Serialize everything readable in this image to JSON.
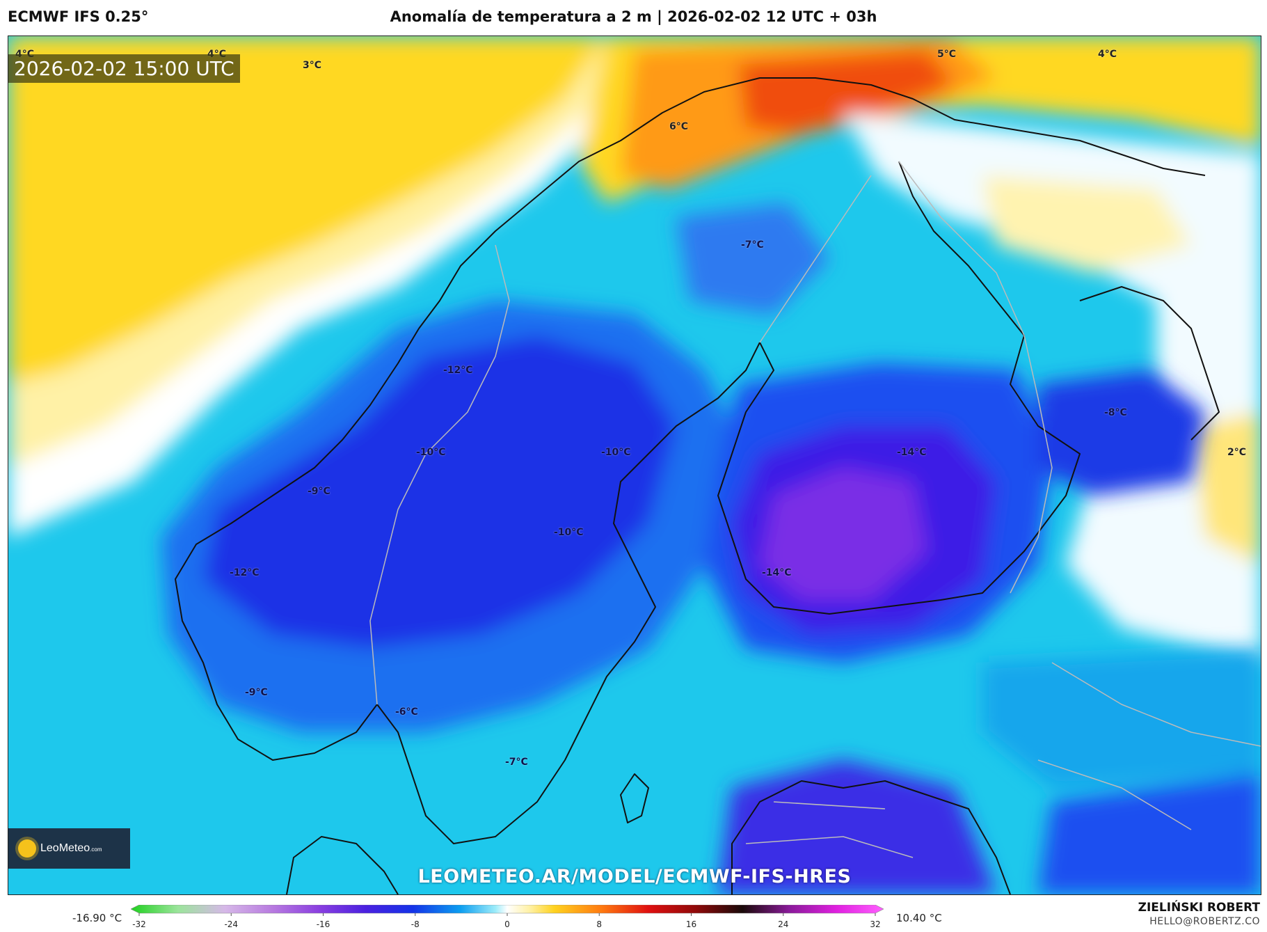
{
  "header": {
    "model_title": "ECMWF IFS 0.25°",
    "map_title": "Anomalía de temperatura a 2 m | 2026-02-02 12 UTC + 03h"
  },
  "map": {
    "valid_time": "2026-02-02 15:00 UTC",
    "url": "LEOMETEO.AR/MODEL/ECMWF-IFS-HRES",
    "logo": {
      "name": "LeoMeteo",
      "suffix": ".com"
    },
    "labels": [
      {
        "id": "l1",
        "text": "4°C"
      },
      {
        "id": "l2",
        "text": "4°C"
      },
      {
        "id": "l3",
        "text": "3°C"
      },
      {
        "id": "l4",
        "text": "5°C"
      },
      {
        "id": "l5",
        "text": "4°C"
      },
      {
        "id": "l6",
        "text": "6°C"
      },
      {
        "id": "l7",
        "text": "-7°C"
      },
      {
        "id": "l8",
        "text": "-12°C"
      },
      {
        "id": "l9",
        "text": "-10°C"
      },
      {
        "id": "l10",
        "text": "-10°C"
      },
      {
        "id": "l11",
        "text": "-8°C"
      },
      {
        "id": "l12",
        "text": "-14°C"
      },
      {
        "id": "l13",
        "text": "2°C"
      },
      {
        "id": "l14",
        "text": "-9°C"
      },
      {
        "id": "l15",
        "text": "-10°C"
      },
      {
        "id": "l16",
        "text": "-12°C"
      },
      {
        "id": "l17",
        "text": "-14°C"
      },
      {
        "id": "l18",
        "text": "-9°C"
      },
      {
        "id": "l19",
        "text": "-6°C"
      },
      {
        "id": "l20",
        "text": "-7°C"
      }
    ]
  },
  "legend": {
    "min_value": "-16.90 °C",
    "max_value": "10.40 °C",
    "range": [
      -32,
      32
    ],
    "ticks": [
      "-32",
      "-24",
      "-16",
      "-8",
      "0",
      "8",
      "16",
      "24",
      "32"
    ],
    "tick_values": [
      -32,
      -24,
      -16,
      -8,
      0,
      8,
      16,
      24,
      32
    ],
    "color_stops": [
      {
        "v": -32,
        "c": "#1fd11f"
      },
      {
        "v": -28,
        "c": "#9be49b"
      },
      {
        "v": -24,
        "c": "#d6b8e8"
      },
      {
        "v": -20,
        "c": "#b87be0"
      },
      {
        "v": -16,
        "c": "#8a3fe0"
      },
      {
        "v": -12,
        "c": "#4a20e0"
      },
      {
        "v": -8,
        "c": "#1433e8"
      },
      {
        "v": -4,
        "c": "#0c9ef0"
      },
      {
        "v": -1,
        "c": "#9cecfa"
      },
      {
        "v": 0,
        "c": "#ffffff"
      },
      {
        "v": 2,
        "c": "#fff0a0"
      },
      {
        "v": 4,
        "c": "#ffd21f"
      },
      {
        "v": 8,
        "c": "#ff7a10"
      },
      {
        "v": 12,
        "c": "#e01010"
      },
      {
        "v": 16,
        "c": "#900a0a"
      },
      {
        "v": 20,
        "c": "#1a0a0a"
      },
      {
        "v": 24,
        "c": "#8a1a9a"
      },
      {
        "v": 28,
        "c": "#e020e0"
      },
      {
        "v": 32,
        "c": "#ff60ff"
      }
    ]
  },
  "author": {
    "name": "ZIELIŃSKI ROBERT",
    "email": "HELLO@ROBERTZ.CO"
  }
}
